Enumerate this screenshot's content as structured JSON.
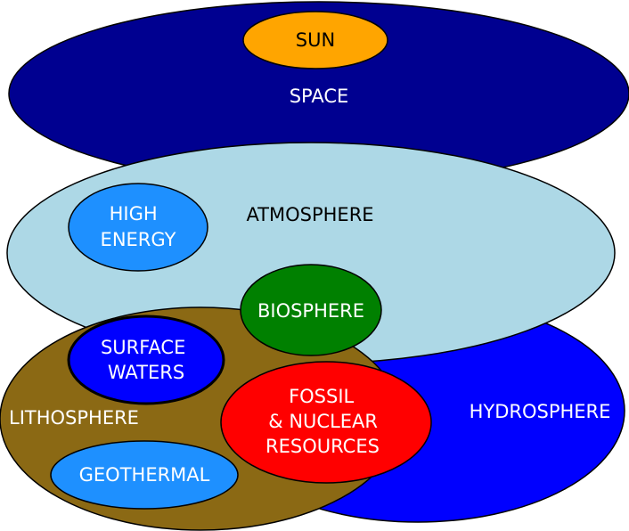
{
  "diagram": {
    "nodes": {
      "space": {
        "label": "SPACE",
        "color": "#000090"
      },
      "sun": {
        "label": "SUN",
        "color": "#ffa500"
      },
      "atmosphere": {
        "label": "ATMOSPHERE",
        "color": "#add8e6"
      },
      "high_energy": {
        "lines": [
          "HIGH",
          "ENERGY"
        ],
        "color": "#1e90ff"
      },
      "hydrosphere": {
        "label": "HYDROSPHERE",
        "color": "#0000ff"
      },
      "lithosphere": {
        "label": "LITHOSPHERE",
        "color": "#8b6914"
      },
      "biosphere": {
        "label": "BIOSPHERE",
        "color": "#008000"
      },
      "surface_waters": {
        "lines": [
          "SURFACE",
          "WATERS"
        ],
        "color": "#0000ff"
      },
      "fossil_nuclear": {
        "lines": [
          "FOSSIL",
          "& NUCLEAR",
          "RESOURCES"
        ],
        "color": "#ff0000"
      },
      "geothermal": {
        "label": "GEOTHERMAL",
        "color": "#1e90ff"
      }
    },
    "outline_color": "#000000"
  }
}
